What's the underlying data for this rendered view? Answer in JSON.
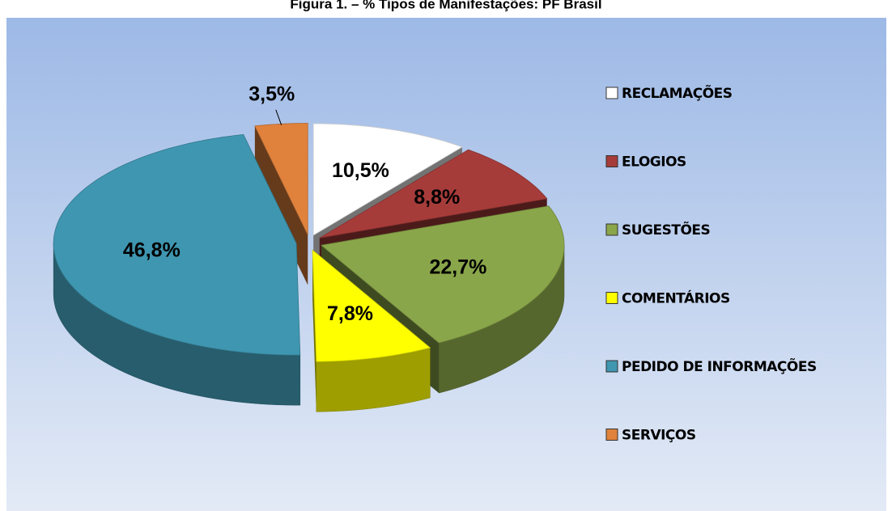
{
  "chart_data": {
    "type": "pie3d",
    "title": "Figura 1. – % Tipos de Manifestações: PF Brasil",
    "categories": [
      "RECLAMAÇÕES",
      "ELOGIOS",
      "SUGESTÕES",
      "COMENTÁRIOS",
      "PEDIDO DE INFORMAÇÕES",
      "SERVIÇOS"
    ],
    "values": [
      10.5,
      8.8,
      22.7,
      7.8,
      46.8,
      3.5
    ],
    "value_labels": [
      "10,5%",
      "8,8%",
      "22,7%",
      "7,8%",
      "46,8%",
      "3,5%"
    ],
    "colors": [
      "#ffffff",
      "#a63c3a",
      "#8aa64a",
      "#ffff00",
      "#3f96b0",
      "#e0823c"
    ],
    "legend": "right"
  }
}
